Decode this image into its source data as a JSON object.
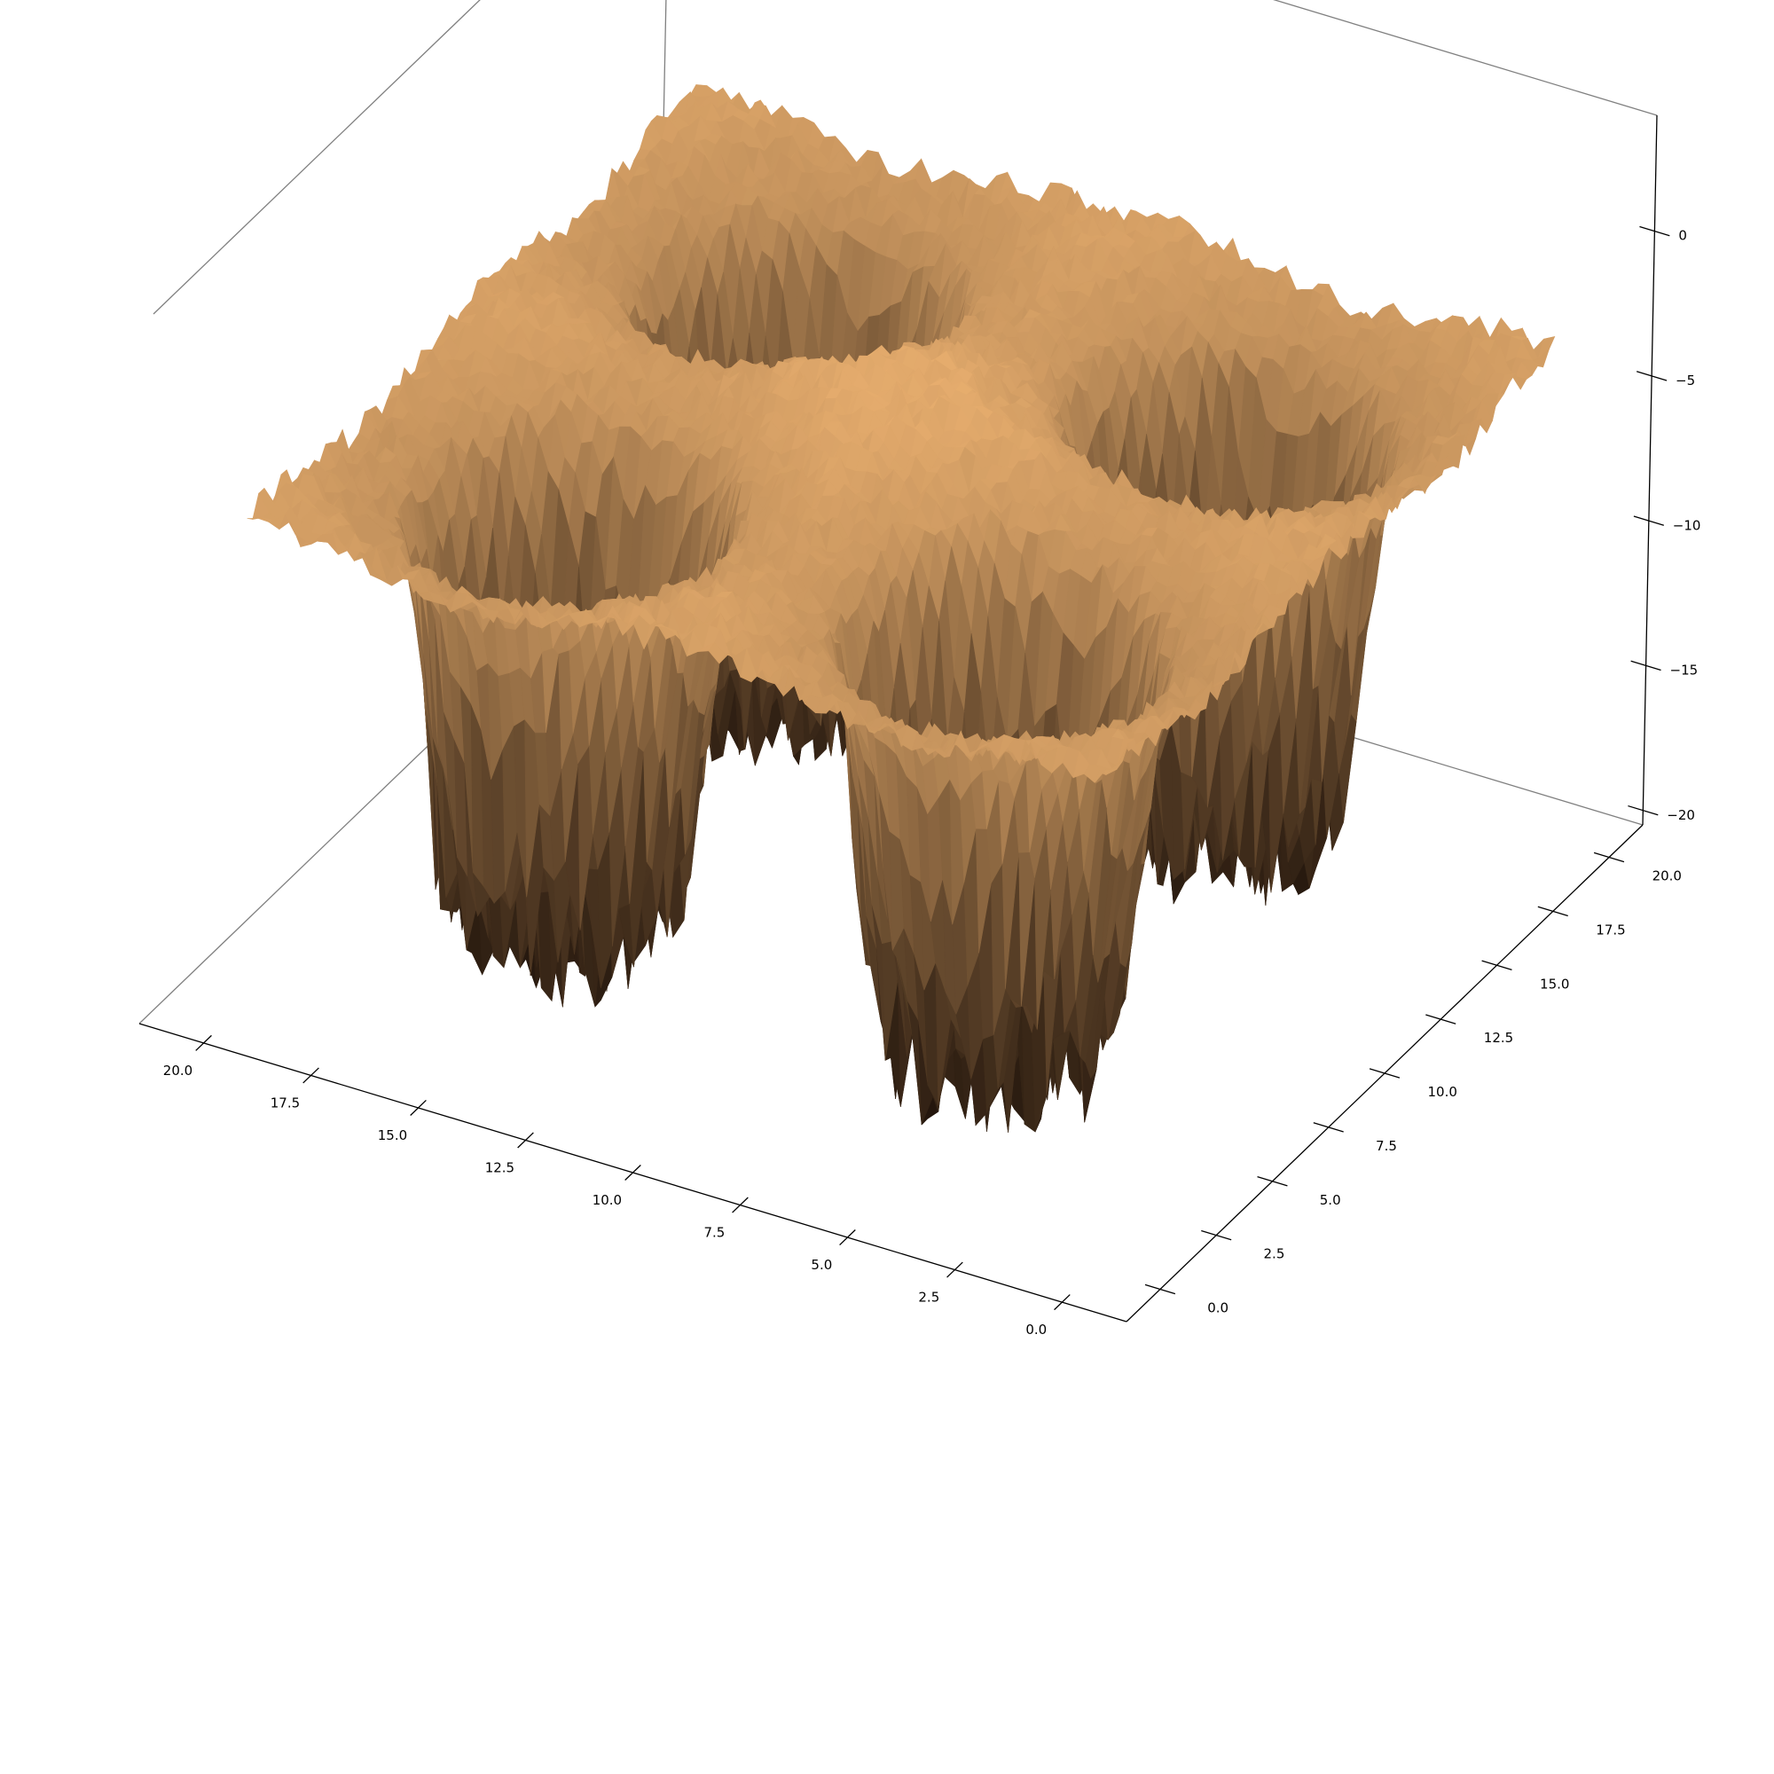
{
  "chart_data": {
    "type": "surface3d",
    "title": "",
    "xlabel": "",
    "ylabel": "",
    "zlabel": "",
    "xlim": [
      -1.5,
      21.5
    ],
    "ylim": [
      -1.5,
      21.5
    ],
    "zlim": [
      -20.5,
      4.0
    ],
    "x_ticks": [
      "0.0",
      "2.5",
      "5.0",
      "7.5",
      "10.0",
      "12.5",
      "15.0",
      "17.5",
      "20.0"
    ],
    "y_ticks": [
      "0.0",
      "2.5",
      "5.0",
      "7.5",
      "10.0",
      "12.5",
      "15.0",
      "17.5",
      "20.0"
    ],
    "z_ticks": [
      "0",
      "−5",
      "−10",
      "−15",
      "−20"
    ],
    "x_tick_values": [
      0,
      2.5,
      5,
      7.5,
      10,
      12.5,
      15,
      17.5,
      20
    ],
    "y_tick_values": [
      0,
      2.5,
      5,
      7.5,
      10,
      12.5,
      15,
      17.5,
      20
    ],
    "z_tick_values": [
      0,
      -5,
      -10,
      -15,
      -20
    ],
    "surface": {
      "grid_x": [
        0,
        20
      ],
      "grid_y": [
        0,
        20
      ],
      "base_level": -3.5,
      "noise_amplitude": 0.5,
      "wells": [
        {
          "x": 5,
          "y": 5,
          "depth_to": -20
        },
        {
          "x": 15,
          "y": 5,
          "depth_to": -20
        },
        {
          "x": 5,
          "y": 15,
          "depth_to": -20
        },
        {
          "x": 15,
          "y": 15,
          "depth_to": -20
        }
      ],
      "well_radius": 3.0
    },
    "colormap": "copper",
    "colors": {
      "surface_high": "#ffc07a",
      "surface_low": "#1e120a",
      "pane_edge": "#808080",
      "axis_line": "#000000"
    },
    "grid": false
  }
}
